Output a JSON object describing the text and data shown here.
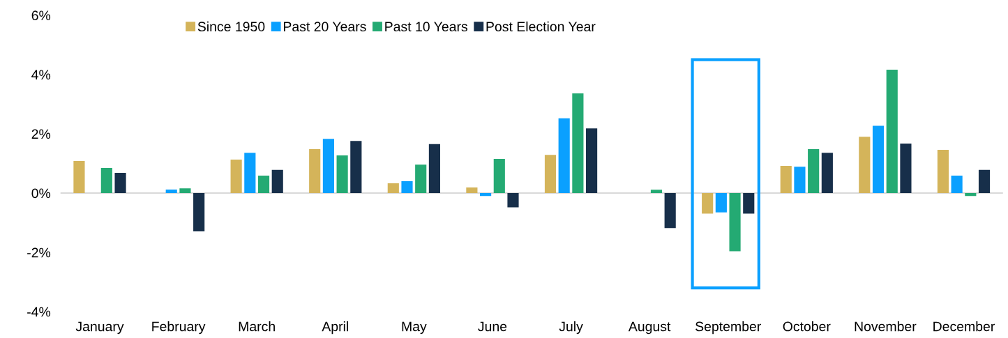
{
  "chart_data": {
    "type": "bar",
    "categories": [
      "January",
      "February",
      "March",
      "April",
      "May",
      "June",
      "July",
      "August",
      "September",
      "October",
      "November",
      "December"
    ],
    "series": [
      {
        "name": "Since 1950",
        "color": "#d4b45a",
        "values": [
          1.08,
          0,
          1.13,
          1.48,
          0.33,
          0.19,
          1.29,
          0,
          -0.69,
          0.92,
          1.9,
          1.46
        ]
      },
      {
        "name": "Past 20 Years",
        "color": "#0aa0ff",
        "values": [
          0,
          0.12,
          1.36,
          1.83,
          0.4,
          -0.1,
          2.52,
          0,
          -0.65,
          0.89,
          2.27,
          0.59
        ]
      },
      {
        "name": "Past 10 Years",
        "color": "#24aa73",
        "values": [
          0.85,
          0.16,
          0.59,
          1.27,
          0.96,
          1.15,
          3.36,
          0.11,
          -1.96,
          1.48,
          4.16,
          -0.1
        ]
      },
      {
        "name": "Post Election Year",
        "color": "#172f4a",
        "values": [
          0.68,
          -1.29,
          0.78,
          1.76,
          1.65,
          -0.48,
          2.18,
          -1.18,
          -0.69,
          1.36,
          1.67,
          0.78
        ]
      }
    ],
    "ylim": [
      -4,
      6
    ],
    "yticks": [
      {
        "value": -4,
        "label": "-4%"
      },
      {
        "value": -2,
        "label": "-2%"
      },
      {
        "value": 0,
        "label": "0%"
      },
      {
        "value": 2,
        "label": "2%"
      },
      {
        "value": 4,
        "label": "4%"
      },
      {
        "value": 6,
        "label": "6%"
      }
    ],
    "legend": "top"
  }
}
